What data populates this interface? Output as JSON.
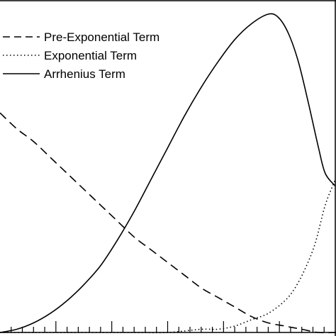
{
  "chart_data": {
    "type": "line",
    "title": "",
    "xlabel": "",
    "ylabel": "",
    "legend_placement": "top-left",
    "grid": false,
    "xlim": [
      0,
      1
    ],
    "ylim": [
      0,
      1
    ],
    "x_tick_count": 30,
    "series": [
      {
        "name": "Pre-Exponential Term",
        "style": "dashed",
        "x": [
          0.0,
          0.05,
          0.1,
          0.15,
          0.2,
          0.25,
          0.3,
          0.35,
          0.4,
          0.45,
          0.5,
          0.55,
          0.6,
          0.65,
          0.7,
          0.75,
          0.8,
          0.85,
          0.9,
          0.95,
          1.0
        ],
        "y": [
          0.69,
          0.64,
          0.6,
          0.55,
          0.5,
          0.45,
          0.4,
          0.35,
          0.3,
          0.26,
          0.22,
          0.18,
          0.14,
          0.11,
          0.08,
          0.05,
          0.03,
          0.02,
          0.01,
          0.0,
          0.0
        ]
      },
      {
        "name": "Exponential Term",
        "style": "dotted",
        "x": [
          0.0,
          0.1,
          0.2,
          0.3,
          0.4,
          0.5,
          0.6,
          0.65,
          0.7,
          0.75,
          0.8,
          0.85,
          0.88,
          0.91,
          0.94,
          0.97,
          1.0
        ],
        "y": [
          0.0,
          0.0,
          0.0,
          0.0,
          0.0,
          0.0,
          0.01,
          0.01,
          0.02,
          0.04,
          0.06,
          0.1,
          0.14,
          0.2,
          0.28,
          0.4,
          0.48
        ]
      },
      {
        "name": "Arrhenius Term",
        "style": "solid",
        "x": [
          0.0,
          0.05,
          0.1,
          0.15,
          0.2,
          0.25,
          0.3,
          0.35,
          0.4,
          0.45,
          0.5,
          0.55,
          0.6,
          0.65,
          0.7,
          0.75,
          0.8,
          0.83,
          0.86,
          0.89,
          0.92,
          0.95,
          0.97,
          1.0
        ],
        "y": [
          0.0,
          0.01,
          0.03,
          0.06,
          0.1,
          0.15,
          0.21,
          0.29,
          0.38,
          0.48,
          0.58,
          0.68,
          0.77,
          0.85,
          0.92,
          0.97,
          1.0,
          0.99,
          0.94,
          0.85,
          0.72,
          0.58,
          0.5,
          0.46
        ]
      }
    ]
  }
}
